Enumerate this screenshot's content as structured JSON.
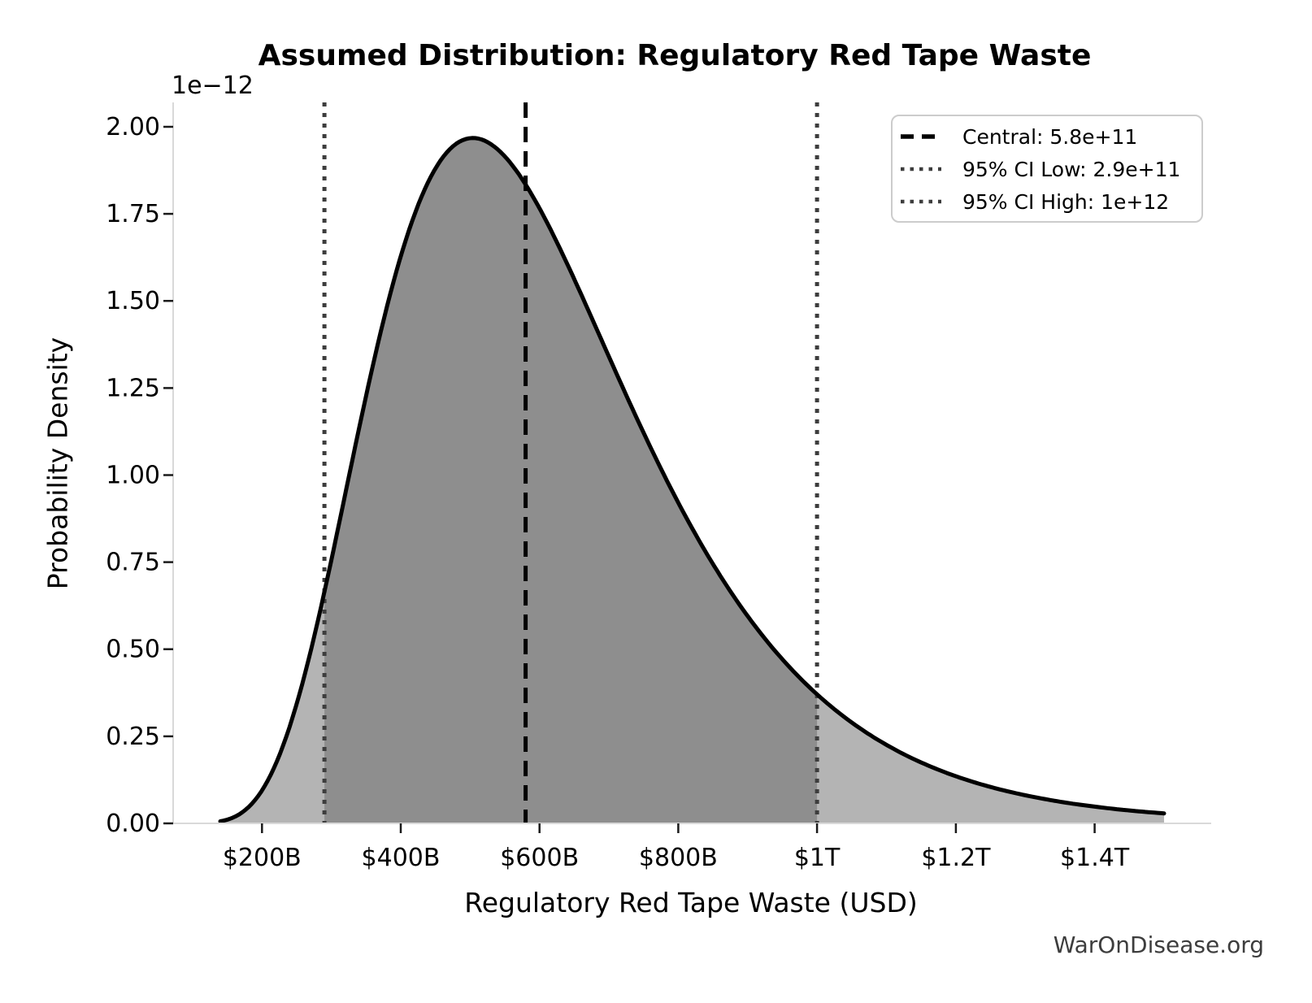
{
  "footer": "WarOnDisease.org",
  "chart_data": {
    "type": "area",
    "title": "Assumed Distribution: Regulatory Red Tape Waste",
    "xlabel": "Regulatory Red Tape Waste (USD)",
    "ylabel": "Probability Density",
    "y_axis_offset_label": "1e−12",
    "grid": false,
    "legend_position": "upper right",
    "xlim": [
      72000000000,
      1568000000000
    ],
    "ylim": [
      0,
      2.07e-12
    ],
    "x_ticks": [
      {
        "value": 200000000000,
        "label": "$200B"
      },
      {
        "value": 400000000000,
        "label": "$400B"
      },
      {
        "value": 600000000000,
        "label": "$600B"
      },
      {
        "value": 800000000000,
        "label": "$800B"
      },
      {
        "value": 1000000000000,
        "label": "$1T"
      },
      {
        "value": 1200000000000,
        "label": "$1.2T"
      },
      {
        "value": 1400000000000,
        "label": "$1.4T"
      }
    ],
    "y_ticks": [
      {
        "value": 0,
        "label": "0.00"
      },
      {
        "value": 2.5e-13,
        "label": "0.25"
      },
      {
        "value": 5e-13,
        "label": "0.50"
      },
      {
        "value": 7.5e-13,
        "label": "0.75"
      },
      {
        "value": 1e-12,
        "label": "1.00"
      },
      {
        "value": 1.25e-12,
        "label": "1.25"
      },
      {
        "value": 1.5e-12,
        "label": "1.50"
      },
      {
        "value": 1.75e-12,
        "label": "1.75"
      },
      {
        "value": 2e-12,
        "label": "2.00"
      }
    ],
    "distribution": {
      "family": "lognormal",
      "median": 580000000000,
      "sigma_log": 0.375,
      "curve_x_min": 140000000000,
      "curve_x_max": 1500000000000,
      "peak_x": 500000000000,
      "peak_density": 1.97e-12
    },
    "legend": [
      {
        "label": "Central: 5.8e+11",
        "value": 580000000000,
        "style": "dashed",
        "color": "#000000"
      },
      {
        "label": "95% CI Low: 2.9e+11",
        "value": 290000000000,
        "style": "dotted",
        "color": "#3d3d3d"
      },
      {
        "label": "95% CI High: 1e+12",
        "value": 1000000000000,
        "style": "dotted",
        "color": "#3d3d3d"
      }
    ],
    "colors": {
      "curve": "#000000",
      "fill_tails": "#b4b4b4",
      "fill_ci": "#8e8e8e",
      "spine": "#d9d9d9",
      "tick_mark": "#1a1a1a",
      "text": "#000000",
      "footer_text": "#3d3d3d",
      "legend_border": "#cccccc"
    }
  }
}
